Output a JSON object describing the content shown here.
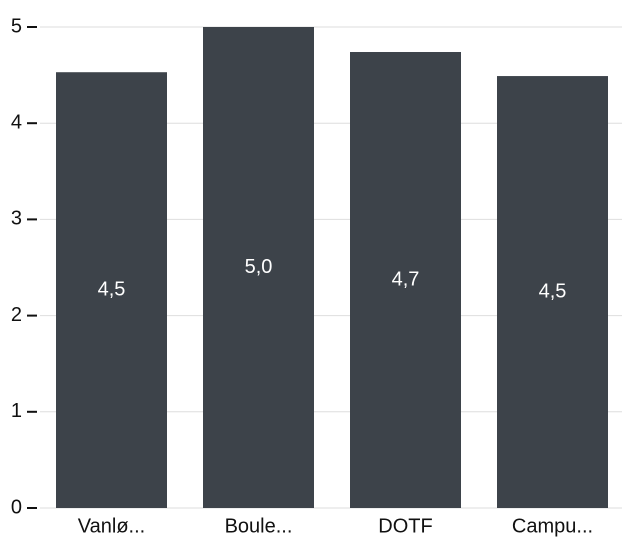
{
  "chart_data": {
    "type": "bar",
    "categories": [
      "Vanlø...",
      "Boule...",
      "DOTF",
      "Campu..."
    ],
    "values": [
      4.53,
      5.0,
      4.74,
      4.49
    ],
    "value_labels": [
      "4,5",
      "5,0",
      "4,7",
      "4,5"
    ],
    "color": "#3d434a",
    "ylim": [
      0,
      5
    ],
    "yticks": [
      0,
      1,
      2,
      3,
      4,
      5
    ],
    "grid": true
  }
}
